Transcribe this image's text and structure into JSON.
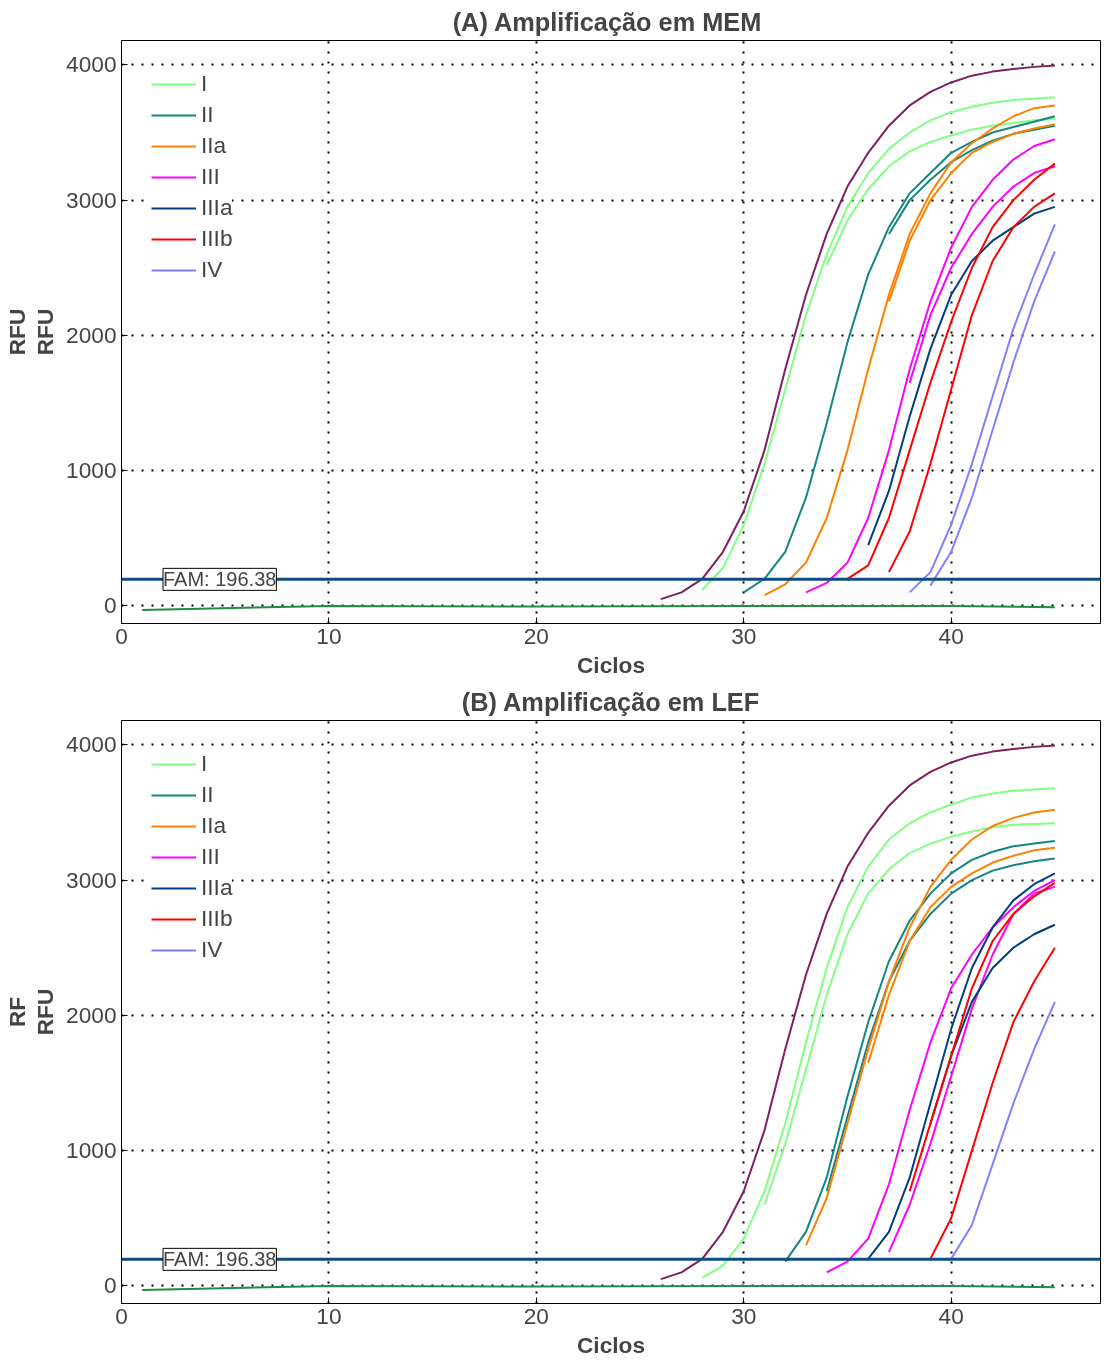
{
  "chart_data": [
    {
      "type": "line",
      "title": "(A)  Amplificação em MEM",
      "xlabel": "Ciclos",
      "ylabel": "RFU",
      "annotations": [
        "RFU"
      ],
      "xlim": [
        0,
        47.2
      ],
      "ylim": [
        -130,
        4180
      ],
      "xticks": [
        0,
        10,
        20,
        30,
        40
      ],
      "yticks": [
        0,
        1000,
        2000,
        3000,
        4000
      ],
      "grid": true,
      "legend": "top left",
      "line_style": "solid",
      "ref_lines": [
        {
          "axis": "y",
          "value": 196.38,
          "label": "FAM: 196.38",
          "color": "#0f4c81"
        }
      ],
      "series": [
        {
          "color": "#7f1f5f",
          "x": [
            26,
            27,
            28,
            29,
            30,
            31,
            32,
            33,
            34,
            35,
            36,
            37,
            38,
            39,
            40,
            41,
            42,
            43,
            44,
            45
          ],
          "values": [
            50,
            100,
            200,
            400,
            700,
            1150,
            1750,
            2300,
            2750,
            3100,
            3350,
            3550,
            3700,
            3800,
            3870,
            3920,
            3950,
            3970,
            3985,
            3995
          ]
        },
        {
          "name": "I",
          "color": "#80ff80",
          "x": [
            28,
            29,
            30,
            31,
            32,
            33,
            34,
            35,
            36,
            37,
            38,
            39,
            40,
            41,
            42,
            43,
            44,
            45
          ],
          "values": [
            120,
            280,
            600,
            1050,
            1600,
            2150,
            2600,
            2950,
            3200,
            3380,
            3500,
            3590,
            3650,
            3690,
            3720,
            3740,
            3750,
            3760
          ]
        },
        {
          "color": "#80ff80",
          "x": [
            34,
            35,
            36,
            37,
            38,
            39,
            40,
            41,
            42,
            43,
            44,
            45
          ],
          "values": [
            2520,
            2850,
            3080,
            3250,
            3360,
            3430,
            3480,
            3520,
            3550,
            3570,
            3590,
            3600
          ]
        },
        {
          "name": "II",
          "color": "#138585",
          "x": [
            30,
            31,
            32,
            33,
            34,
            35,
            36,
            37,
            38,
            39,
            40,
            41,
            42,
            43,
            44,
            45
          ],
          "values": [
            100,
            200,
            400,
            800,
            1350,
            1950,
            2450,
            2800,
            3050,
            3200,
            3350,
            3430,
            3500,
            3540,
            3580,
            3620
          ]
        },
        {
          "color": "#138585",
          "x": [
            37,
            38,
            39,
            40,
            41,
            42,
            43,
            44,
            45
          ],
          "values": [
            2750,
            3000,
            3150,
            3280,
            3370,
            3440,
            3490,
            3520,
            3550
          ]
        },
        {
          "name": "IIa",
          "color": "#ff8000",
          "x": [
            31,
            32,
            33,
            34,
            35,
            36,
            37,
            38,
            39,
            40,
            41,
            42,
            43,
            44,
            45
          ],
          "values": [
            80,
            160,
            320,
            650,
            1150,
            1750,
            2300,
            2750,
            3050,
            3280,
            3420,
            3530,
            3620,
            3680,
            3700
          ]
        },
        {
          "color": "#ff8000",
          "x": [
            37,
            38,
            39,
            40,
            41,
            42,
            43,
            44,
            45
          ],
          "values": [
            2250,
            2700,
            3000,
            3200,
            3350,
            3430,
            3490,
            3530,
            3560
          ]
        },
        {
          "name": "III",
          "color": "#ff00ff",
          "x": [
            33,
            34,
            35,
            36,
            37,
            38,
            39,
            40,
            41,
            42,
            43,
            44,
            45
          ],
          "values": [
            100,
            170,
            320,
            650,
            1150,
            1750,
            2250,
            2650,
            2950,
            3150,
            3300,
            3400,
            3450
          ]
        },
        {
          "color": "#ff00ff",
          "x": [
            38,
            39,
            40,
            41,
            42,
            43,
            44,
            45
          ],
          "values": [
            1650,
            2150,
            2500,
            2750,
            2950,
            3100,
            3200,
            3250
          ]
        },
        {
          "name": "IIIa",
          "color": "#003f7f",
          "x": [
            36,
            37,
            38,
            39,
            40,
            41,
            42,
            43,
            44,
            45
          ],
          "values": [
            450,
            850,
            1400,
            1900,
            2300,
            2550,
            2700,
            2800,
            2900,
            2950
          ]
        },
        {
          "name": "IIIb",
          "color": "#ff0000",
          "x": [
            35,
            36,
            37,
            38,
            39,
            40,
            41,
            42,
            43,
            44,
            45
          ],
          "values": [
            200,
            300,
            650,
            1150,
            1650,
            2100,
            2500,
            2800,
            3000,
            3150,
            3270
          ]
        },
        {
          "color": "#ff0000",
          "x": [
            37,
            38,
            39,
            40,
            41,
            42,
            43,
            44,
            45
          ],
          "values": [
            250,
            550,
            1050,
            1600,
            2150,
            2550,
            2800,
            2950,
            3050
          ]
        },
        {
          "name": "IV",
          "color": "#8080ff",
          "x": [
            38,
            39,
            40,
            41,
            42,
            43,
            44,
            45
          ],
          "values": [
            100,
            250,
            600,
            1050,
            1550,
            2050,
            2450,
            2820
          ]
        },
        {
          "color": "#8080ff",
          "x": [
            39,
            40,
            41,
            42,
            43,
            44,
            45
          ],
          "values": [
            150,
            400,
            800,
            1300,
            1800,
            2250,
            2620
          ]
        },
        {
          "color": "#1e8f3e",
          "x": [
            1,
            10,
            20,
            30,
            40,
            45
          ],
          "values": [
            -30,
            0,
            -5,
            0,
            0,
            -10
          ]
        }
      ]
    },
    {
      "type": "line",
      "title": "(B) Amplificação em LEF",
      "xlabel": "Ciclos",
      "ylabel": "RFU",
      "annotations": [
        "RF"
      ],
      "xlim": [
        0,
        47.2
      ],
      "ylim": [
        -130,
        4180
      ],
      "xticks": [
        0,
        10,
        20,
        30,
        40
      ],
      "yticks": [
        0,
        1000,
        2000,
        3000,
        4000
      ],
      "grid": true,
      "legend": "top left",
      "line_style": "solid",
      "ref_lines": [
        {
          "axis": "y",
          "value": 196.38,
          "label": "FAM: 196.38",
          "color": "#0f4c81"
        }
      ],
      "series": [
        {
          "color": "#7f1f5f",
          "x": [
            26,
            27,
            28,
            29,
            30,
            31,
            32,
            33,
            34,
            35,
            36,
            37,
            38,
            39,
            40,
            41,
            42,
            43,
            44,
            45
          ],
          "values": [
            50,
            100,
            200,
            400,
            700,
            1150,
            1750,
            2300,
            2750,
            3100,
            3350,
            3550,
            3700,
            3800,
            3870,
            3920,
            3950,
            3970,
            3985,
            3995
          ]
        },
        {
          "name": "I",
          "color": "#80ff80",
          "x": [
            28,
            29,
            30,
            31,
            32,
            33,
            34,
            35,
            36,
            37,
            38,
            39,
            40,
            41,
            42,
            43,
            44,
            45
          ],
          "values": [
            60,
            150,
            350,
            700,
            1200,
            1800,
            2350,
            2800,
            3100,
            3300,
            3420,
            3500,
            3560,
            3610,
            3640,
            3660,
            3670,
            3680
          ]
        },
        {
          "color": "#80ff80",
          "x": [
            31,
            32,
            33,
            34,
            35,
            36,
            37,
            38,
            39,
            40,
            41,
            42,
            43,
            44,
            45
          ],
          "values": [
            600,
            1050,
            1600,
            2150,
            2600,
            2900,
            3080,
            3200,
            3270,
            3320,
            3360,
            3390,
            3410,
            3415,
            3420
          ]
        },
        {
          "name": "II",
          "color": "#138585",
          "x": [
            32,
            33,
            34,
            35,
            36,
            37,
            38,
            39,
            40,
            41,
            42,
            43,
            44,
            45
          ],
          "values": [
            180,
            400,
            800,
            1400,
            1950,
            2400,
            2700,
            2900,
            3050,
            3150,
            3210,
            3250,
            3270,
            3290
          ]
        },
        {
          "color": "#138585",
          "x": [
            34,
            35,
            36,
            37,
            38,
            39,
            40,
            41,
            42,
            43,
            44,
            45
          ],
          "values": [
            700,
            1250,
            1800,
            2250,
            2550,
            2750,
            2900,
            3000,
            3070,
            3110,
            3140,
            3160
          ]
        },
        {
          "name": "IIa",
          "color": "#ff8000",
          "x": [
            33,
            34,
            35,
            36,
            37,
            38,
            39,
            40,
            41,
            42,
            43,
            44,
            45
          ],
          "values": [
            300,
            650,
            1200,
            1750,
            2250,
            2650,
            2950,
            3150,
            3300,
            3400,
            3460,
            3500,
            3520
          ]
        },
        {
          "color": "#ff8000",
          "x": [
            36,
            37,
            38,
            39,
            40,
            41,
            42,
            43,
            44,
            45
          ],
          "values": [
            1650,
            2150,
            2550,
            2800,
            2950,
            3050,
            3130,
            3180,
            3220,
            3240
          ]
        },
        {
          "name": "III",
          "color": "#ff00ff",
          "x": [
            34,
            35,
            36,
            37,
            38,
            39,
            40,
            41,
            42,
            43,
            44,
            45
          ],
          "values": [
            100,
            180,
            350,
            750,
            1300,
            1800,
            2200,
            2450,
            2650,
            2800,
            2920,
            3000
          ]
        },
        {
          "color": "#ff00ff",
          "x": [
            37,
            38,
            39,
            40,
            41,
            42,
            43,
            44,
            45
          ],
          "values": [
            250,
            600,
            1050,
            1550,
            2050,
            2450,
            2750,
            2900,
            2950
          ]
        },
        {
          "name": "IIIa",
          "color": "#003f7f",
          "x": [
            36,
            37,
            38,
            39,
            40,
            41,
            42,
            43,
            44,
            45
          ],
          "values": [
            200,
            400,
            800,
            1350,
            1900,
            2350,
            2650,
            2850,
            2970,
            3050
          ]
        },
        {
          "color": "#003f7f",
          "x": [
            39,
            40,
            41,
            42,
            43,
            44,
            45
          ],
          "values": [
            1200,
            1700,
            2100,
            2350,
            2500,
            2600,
            2670
          ]
        },
        {
          "name": "IIIb",
          "color": "#ff0000",
          "x": [
            38,
            39,
            40,
            41,
            42,
            43,
            44,
            45
          ],
          "values": [
            700,
            1200,
            1700,
            2200,
            2550,
            2750,
            2880,
            2980
          ]
        },
        {
          "color": "#ff0000",
          "x": [
            39,
            40,
            41,
            42,
            43,
            44,
            45
          ],
          "values": [
            200,
            500,
            1000,
            1500,
            1950,
            2250,
            2500
          ]
        },
        {
          "name": "IV",
          "color": "#8080ff",
          "x": [
            40,
            41,
            42,
            43,
            44,
            45
          ],
          "values": [
            200,
            450,
            900,
            1350,
            1750,
            2100
          ]
        },
        {
          "color": "#1e8f3e",
          "x": [
            1,
            10,
            20,
            30,
            40,
            45
          ],
          "values": [
            -30,
            0,
            -5,
            0,
            0,
            -10
          ]
        }
      ]
    }
  ]
}
